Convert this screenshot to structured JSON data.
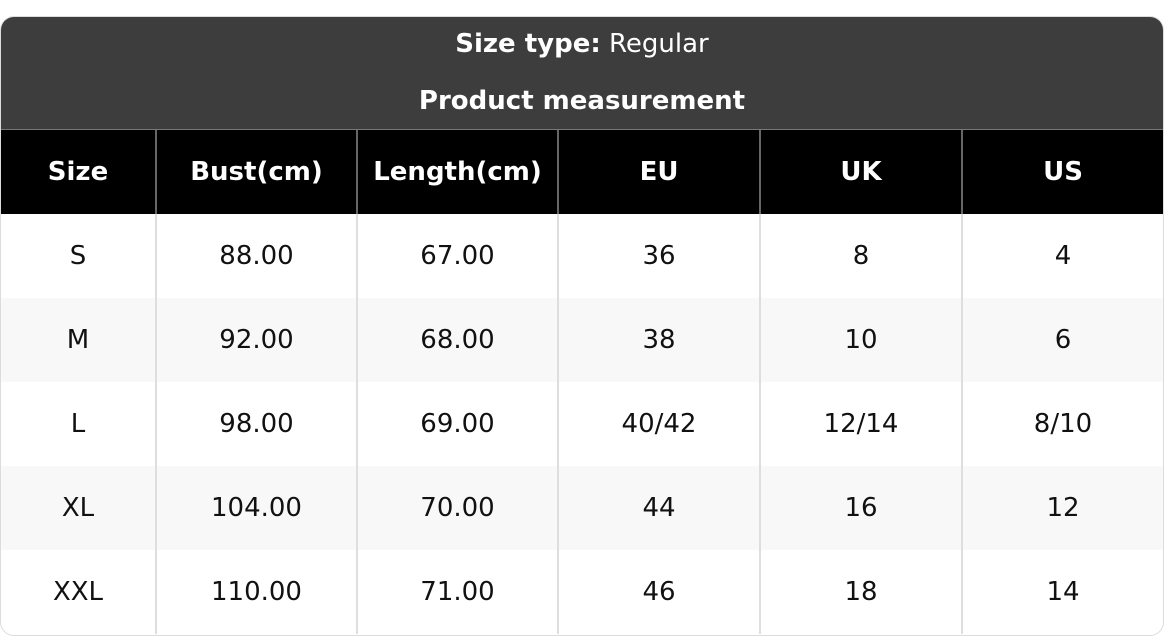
{
  "header": {
    "size_type_label": "Size type:",
    "size_type_value": "Regular",
    "subtitle": "Product measurement"
  },
  "table": {
    "columns": [
      "Size",
      "Bust(cm)",
      "Length(cm)",
      "EU",
      "UK",
      "US"
    ],
    "rows": [
      [
        "S",
        "88.00",
        "67.00",
        "36",
        "8",
        "4"
      ],
      [
        "M",
        "92.00",
        "68.00",
        "38",
        "10",
        "6"
      ],
      [
        "L",
        "98.00",
        "69.00",
        "40/42",
        "12/14",
        "8/10"
      ],
      [
        "XL",
        "104.00",
        "70.00",
        "44",
        "16",
        "12"
      ],
      [
        "XXL",
        "110.00",
        "71.00",
        "46",
        "18",
        "14"
      ]
    ]
  },
  "colors": {
    "header_bg": "#3d3d3d",
    "column_header_bg": "#000000",
    "alt_row_bg": "#f8f8f8"
  }
}
